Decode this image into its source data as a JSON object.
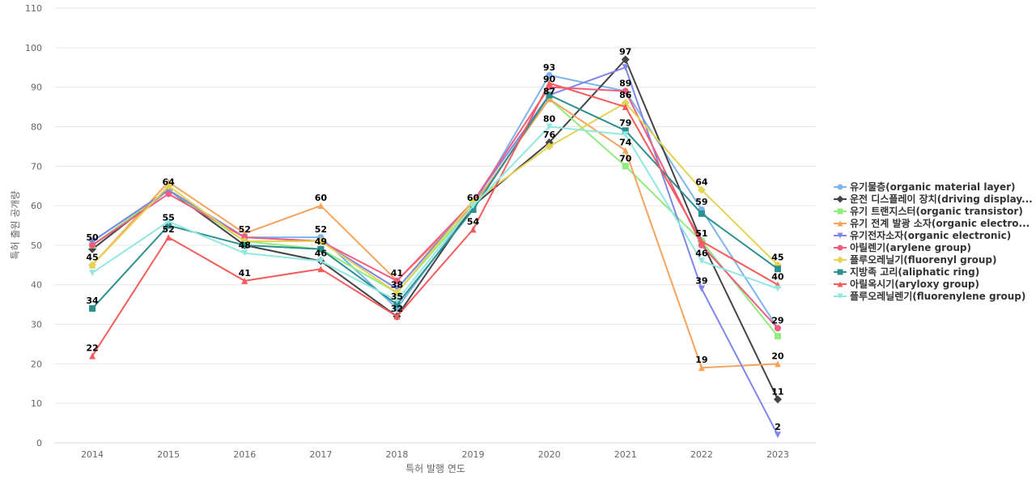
{
  "chart_data": {
    "type": "line",
    "xlabel": "특허 발행 연도",
    "ylabel": "특허 출원 공개량",
    "ylim": [
      0,
      110
    ],
    "yticks": [
      0,
      10,
      20,
      30,
      40,
      50,
      60,
      70,
      80,
      90,
      100,
      110
    ],
    "categories": [
      "2014",
      "2015",
      "2016",
      "2017",
      "2018",
      "2019",
      "2020",
      "2021",
      "2022",
      "2023"
    ],
    "grid": true,
    "legend_position": "right",
    "series": [
      {
        "name": "유기물층(organic material layer)",
        "color": "#7cb5ec",
        "marker": "circle",
        "values": [
          51,
          64,
          52,
          52,
          34,
          60,
          93,
          89,
          59,
          29
        ]
      },
      {
        "name": "운전 디스플레이 장치(driving display...",
        "color": "#434348",
        "marker": "diamond",
        "values": [
          49,
          64,
          50,
          46,
          32,
          60,
          76,
          97,
          51,
          11
        ]
      },
      {
        "name": "유기 트랜지스터(organic transistor)",
        "color": "#90ed7d",
        "marker": "square",
        "values": [
          50,
          64,
          51,
          49,
          38,
          60,
          87,
          70,
          51,
          27
        ]
      },
      {
        "name": "유기 전계 발광 소자(organic electro...",
        "color": "#f7a35c",
        "marker": "triangle",
        "values": [
          45,
          66,
          53,
          60,
          41,
          60,
          87,
          74,
          19,
          20
        ]
      },
      {
        "name": "유기전자소자(organic electronic)",
        "color": "#8085e9",
        "marker": "triangle-down",
        "values": [
          51,
          64,
          52,
          51,
          39,
          61,
          88,
          95,
          39,
          2
        ]
      },
      {
        "name": "아릴렌기(arylene group)",
        "color": "#f15c80",
        "marker": "circle",
        "values": [
          50,
          63,
          52,
          51,
          41,
          61,
          90,
          89,
          50,
          29
        ]
      },
      {
        "name": "플루오레닐기(fluorenyl group)",
        "color": "#e4d354",
        "marker": "diamond",
        "values": [
          45,
          65,
          51,
          51,
          38,
          61,
          75,
          86,
          64,
          45
        ]
      },
      {
        "name": "지방족 고리(aliphatic ring)",
        "color": "#2b908f",
        "marker": "square",
        "values": [
          34,
          55,
          50,
          49,
          35,
          59,
          88,
          79,
          58,
          44
        ]
      },
      {
        "name": "아릴옥시기(aryloxy group)",
        "color": "#f45b5b",
        "marker": "triangle",
        "values": [
          22,
          52,
          41,
          44,
          32,
          54,
          91,
          85,
          51,
          40
        ]
      },
      {
        "name": "플루오레닐렌기(fluorenylene group)",
        "color": "#91e8e1",
        "marker": "triangle-down",
        "values": [
          43,
          56,
          48,
          46,
          36,
          60,
          80,
          78,
          46,
          39
        ]
      }
    ],
    "data_labels": [
      {
        "x": "2014",
        "text": "50",
        "value": 50
      },
      {
        "x": "2014",
        "text": "45",
        "value": 45
      },
      {
        "x": "2014",
        "text": "34",
        "value": 34
      },
      {
        "x": "2014",
        "text": "22",
        "value": 22
      },
      {
        "x": "2015",
        "text": "64",
        "value": 64
      },
      {
        "x": "2015",
        "text": "55",
        "value": 55
      },
      {
        "x": "2015",
        "text": "52",
        "value": 52
      },
      {
        "x": "2016",
        "text": "52",
        "value": 52
      },
      {
        "x": "2016",
        "text": "48",
        "value": 48
      },
      {
        "x": "2016",
        "text": "41",
        "value": 41
      },
      {
        "x": "2017",
        "text": "60",
        "value": 60
      },
      {
        "x": "2017",
        "text": "52",
        "value": 52
      },
      {
        "x": "2017",
        "text": "49",
        "value": 49
      },
      {
        "x": "2017",
        "text": "46",
        "value": 46
      },
      {
        "x": "2018",
        "text": "41",
        "value": 41
      },
      {
        "x": "2018",
        "text": "38",
        "value": 38
      },
      {
        "x": "2018",
        "text": "35",
        "value": 35
      },
      {
        "x": "2018",
        "text": "32",
        "value": 32
      },
      {
        "x": "2019",
        "text": "60",
        "value": 60
      },
      {
        "x": "2019",
        "text": "54",
        "value": 54
      },
      {
        "x": "2020",
        "text": "93",
        "value": 93
      },
      {
        "x": "2020",
        "text": "90",
        "value": 90
      },
      {
        "x": "2020",
        "text": "87",
        "value": 87
      },
      {
        "x": "2020",
        "text": "80",
        "value": 80
      },
      {
        "x": "2020",
        "text": "76",
        "value": 76
      },
      {
        "x": "2021",
        "text": "97",
        "value": 97
      },
      {
        "x": "2021",
        "text": "89",
        "value": 89
      },
      {
        "x": "2021",
        "text": "86",
        "value": 86
      },
      {
        "x": "2021",
        "text": "79",
        "value": 79
      },
      {
        "x": "2021",
        "text": "74",
        "value": 74
      },
      {
        "x": "2021",
        "text": "70",
        "value": 70
      },
      {
        "x": "2022",
        "text": "64",
        "value": 64
      },
      {
        "x": "2022",
        "text": "59",
        "value": 59
      },
      {
        "x": "2022",
        "text": "51",
        "value": 51
      },
      {
        "x": "2022",
        "text": "46",
        "value": 46
      },
      {
        "x": "2022",
        "text": "39",
        "value": 39
      },
      {
        "x": "2022",
        "text": "19",
        "value": 19
      },
      {
        "x": "2023",
        "text": "45",
        "value": 45
      },
      {
        "x": "2023",
        "text": "40",
        "value": 40
      },
      {
        "x": "2023",
        "text": "29",
        "value": 29
      },
      {
        "x": "2023",
        "text": "20",
        "value": 20
      },
      {
        "x": "2023",
        "text": "11",
        "value": 11
      },
      {
        "x": "2023",
        "text": "2",
        "value": 2
      }
    ]
  }
}
